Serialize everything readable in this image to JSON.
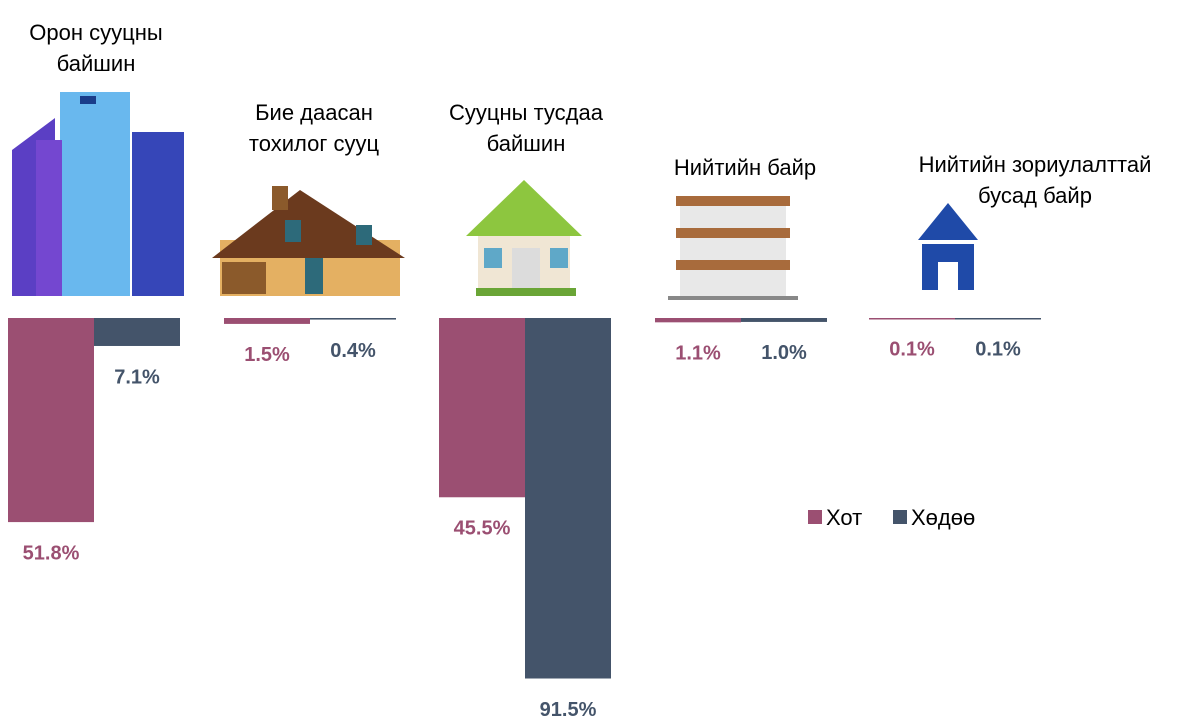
{
  "chart_data": {
    "type": "bar",
    "categories": [
      "Орон сууцны байшин",
      "Бие даасан тохилог сууц",
      "Сууцны тусдаа байшин",
      "Нийтийн байр",
      "Нийтийн зориулалттай бусад байр"
    ],
    "series": [
      {
        "name": "Хот",
        "color": "#9b4f72",
        "values": [
          51.8,
          1.5,
          45.5,
          1.1,
          0.1
        ],
        "value_labels": [
          "51.8%",
          "1.5%",
          "45.5%",
          "1.1%",
          "0.1%"
        ]
      },
      {
        "name": "Хөдөө",
        "color": "#44546a",
        "values": [
          7.1,
          0.4,
          91.5,
          1.0,
          0.1
        ],
        "value_labels": [
          "7.1%",
          "0.4%",
          "91.5%",
          "1.0%",
          "0.1%"
        ]
      }
    ]
  }
}
